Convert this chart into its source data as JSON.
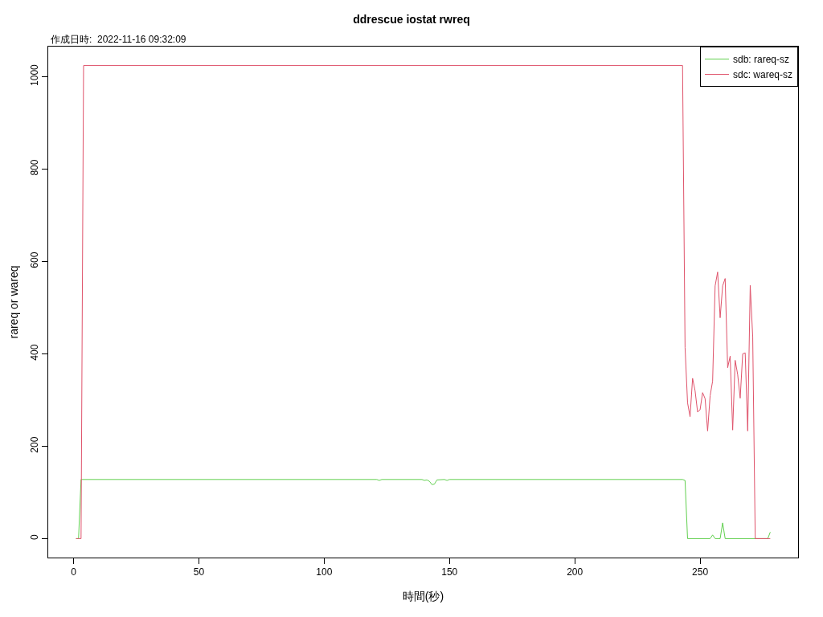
{
  "chart_data": {
    "type": "line",
    "title": "ddrescue iostat rwreq",
    "annotations": [
      "作成日時:  2022-11-16 09:32:09"
    ],
    "xlabel": "時間(秒)",
    "ylabel": "rareq or wareq",
    "xlim": [
      -10.1,
      289.1
    ],
    "xticks": [
      0,
      50,
      100,
      150,
      200,
      250
    ],
    "ylim": [
      -41,
      1065
    ],
    "yticks": [
      0,
      200,
      400,
      600,
      800,
      1000
    ],
    "grid": false,
    "legend": "top right",
    "marker": "none",
    "line_style": "solid",
    "series": [
      {
        "name": "sdb: rareq-sz",
        "color": "#61d04f",
        "x": [
          1,
          2,
          3,
          121,
          122,
          123,
          139,
          140,
          141,
          142,
          143,
          144,
          145,
          148,
          149,
          150,
          243,
          244,
          245,
          254,
          255,
          256,
          258,
          259,
          260,
          277,
          278
        ],
        "values": [
          0,
          0,
          128,
          128,
          126,
          128,
          128,
          126,
          127,
          124,
          117,
          118,
          127,
          128,
          126,
          128,
          128,
          126,
          0,
          0,
          8,
          0,
          0,
          34,
          0,
          0,
          14
        ]
      },
      {
        "name": "sdc: wareq-sz",
        "color": "#df536b",
        "x": [
          1,
          2,
          3,
          4,
          243,
          244,
          245,
          246,
          247,
          248,
          249,
          250,
          251,
          252,
          253,
          254,
          255,
          256,
          257,
          258,
          259,
          260,
          261,
          262,
          263,
          264,
          265,
          266,
          267,
          268,
          269,
          270,
          271,
          272,
          278
        ],
        "values": [
          0,
          0,
          0,
          1024,
          1024,
          414,
          294,
          264,
          347,
          320,
          274,
          279,
          316,
          303,
          233,
          309,
          341,
          547,
          577,
          478,
          547,
          563,
          370,
          395,
          235,
          386,
          355,
          304,
          400,
          402,
          233,
          548,
          437,
          0,
          0
        ]
      }
    ]
  }
}
